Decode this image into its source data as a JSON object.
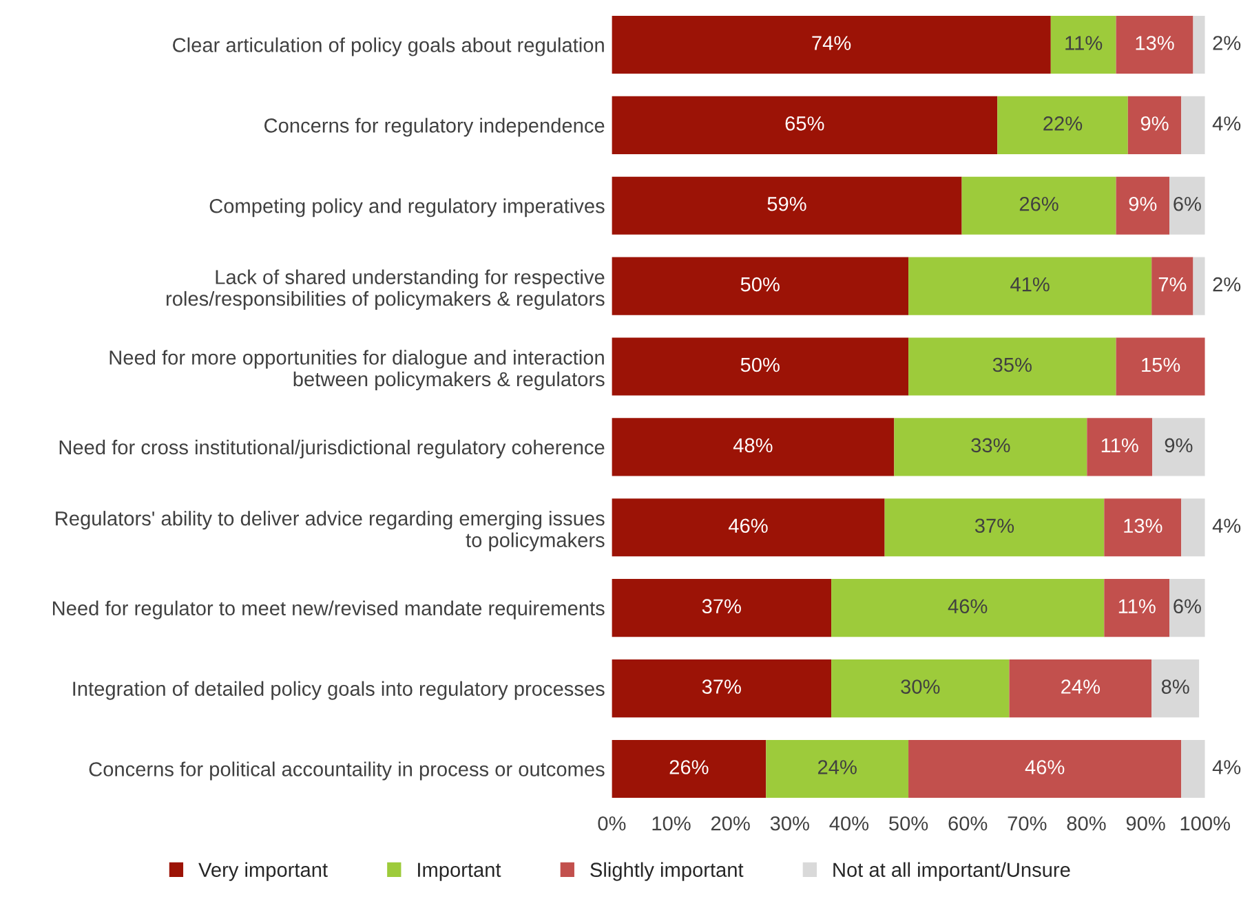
{
  "chart_data": {
    "type": "bar",
    "orientation": "horizontal",
    "stacked": true,
    "categories": [
      "Clear articulation of policy goals about regulation",
      "Concerns for regulatory independence",
      "Competing policy and regulatory imperatives",
      "Lack of shared understanding for respective\nroles/responsibilities of policymakers & regulators",
      "Need for more opportunities for dialogue and interaction\nbetween policymakers & regulators",
      "Need for cross institutional/jurisdictional regulatory coherence",
      "Regulators' ability to deliver advice regarding emerging issues\nto policymakers",
      "Need for regulator to meet new/revised mandate requirements",
      "Integration of detailed policy goals into regulatory processes",
      "Concerns for political accountaility in process or outcomes"
    ],
    "series": [
      {
        "name": "Very important",
        "color": "#9c1306",
        "values": [
          74,
          65,
          59,
          50,
          50,
          47.6,
          46,
          37,
          37,
          26
        ],
        "value_labels": [
          "74%",
          "65%",
          "59%",
          "50%",
          "50%",
          "48%",
          "46%",
          "37%",
          "37%",
          "26%"
        ]
      },
      {
        "name": "Important",
        "color": "#9dcb3b",
        "values": [
          11,
          22,
          26,
          41,
          35,
          32.5,
          37,
          46,
          30,
          24
        ],
        "value_labels": [
          "11%",
          "22%",
          "26%",
          "41%",
          "35%",
          "33%",
          "37%",
          "46%",
          "30%",
          "24%"
        ]
      },
      {
        "name": "Slightly important",
        "color": "#c2504d",
        "values": [
          13,
          9,
          9,
          7,
          15,
          11,
          13,
          11,
          24,
          46
        ],
        "value_labels": [
          "13%",
          "9%",
          "9%",
          "7%",
          "15%",
          "11%",
          "13%",
          "11%",
          "24%",
          "46%"
        ]
      },
      {
        "name": "Not at all important/Unsure",
        "color": "#d9d9d9",
        "values": [
          2,
          4,
          6,
          2,
          null,
          8.9,
          4,
          6,
          8,
          4
        ],
        "value_labels": [
          "2%",
          "4%",
          "6%",
          "2%",
          null,
          "9%",
          "4%",
          "6%",
          "8%",
          "4%"
        ]
      }
    ],
    "xlim": [
      0,
      100
    ],
    "xticks": [
      {
        "value": 0,
        "label": "0%"
      },
      {
        "value": 10,
        "label": "10%"
      },
      {
        "value": 20,
        "label": "20%"
      },
      {
        "value": 30,
        "label": "30%"
      },
      {
        "value": 40,
        "label": "40%"
      },
      {
        "value": 50,
        "label": "50%"
      },
      {
        "value": 60,
        "label": "60%"
      },
      {
        "value": 70,
        "label": "70%"
      },
      {
        "value": 80,
        "label": "80%"
      },
      {
        "value": 90,
        "label": "90%"
      },
      {
        "value": 100,
        "label": "100%"
      }
    ],
    "grid": false,
    "legend": "bottom"
  }
}
